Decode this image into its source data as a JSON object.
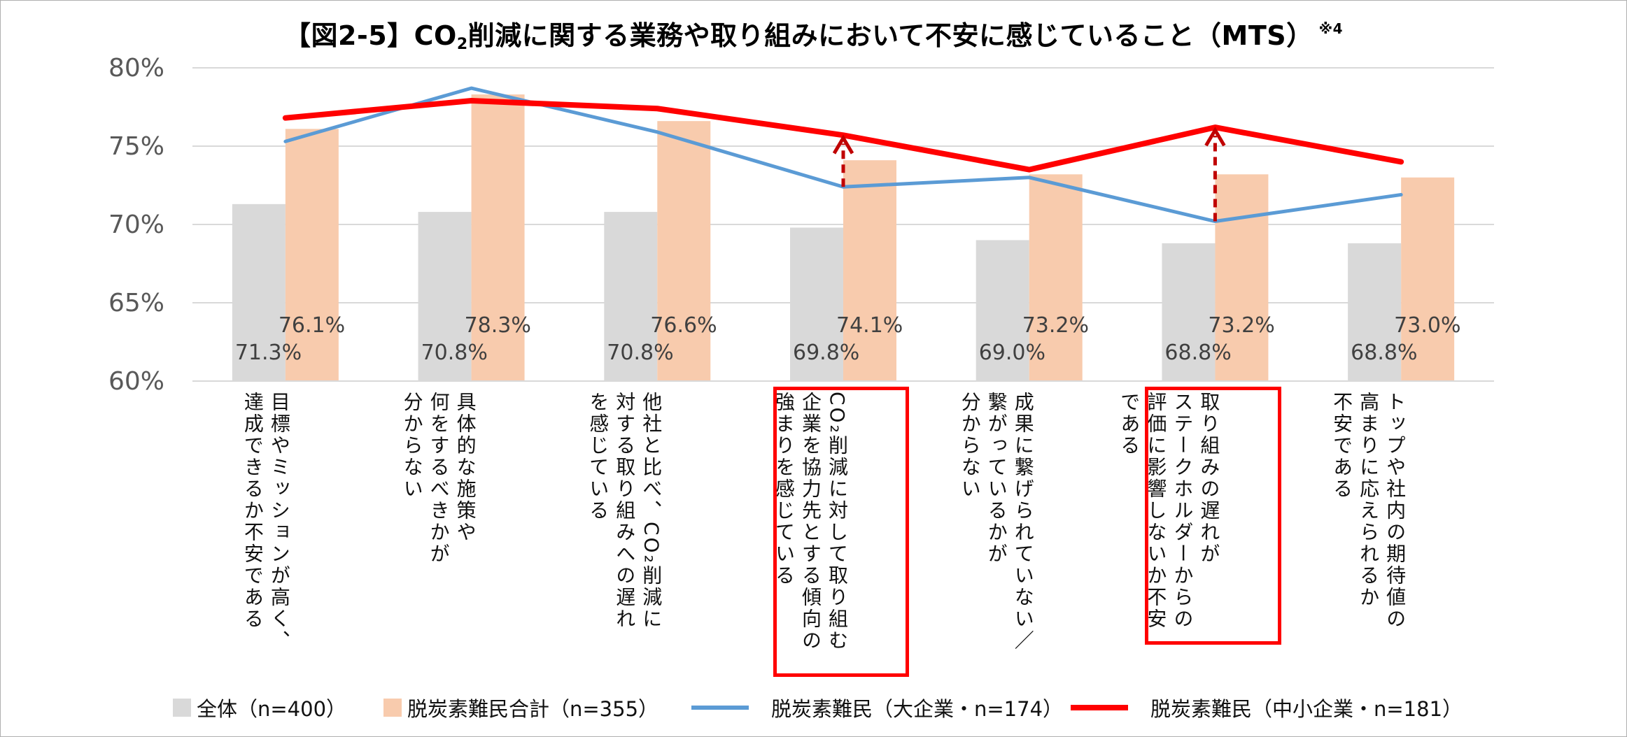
{
  "chart_data": {
    "type": "bar",
    "title_parts": {
      "before_sub": "【図2-5】CO",
      "sub": "2",
      "after_sub": "削減に関する業務や取り組みにおいて不安に感じていること（MTS）",
      "note": "※4"
    },
    "ylim": [
      60,
      80
    ],
    "yticks": [
      "60%",
      "65%",
      "70%",
      "75%",
      "80%"
    ],
    "grid": true,
    "categories": [
      "目標やミッションが高く、\n達成できるか不安である",
      "具体的な施策や\n何をするべきかが\n分からない",
      "他社と比べ、CO₂削減に\n対する取り組みへの遅れ\nを感じている",
      "CO₂削減に対して取り組む\n企業を協力先とする傾向の\n強まりを感じている",
      "成果に繋げられていない／\n繋がっているかが\n分からない",
      "取り組みの遅れが\nステークホルダーからの\n評価に影響しないか不安\nである",
      "トップや社内の期待値の\n高まりに応えられるか\n不安である"
    ],
    "highlighted_categories": [
      3,
      5
    ],
    "series": [
      {
        "name": "全体（n=400）",
        "kind": "bar",
        "color": "#d9d9d9",
        "values": [
          71.3,
          70.8,
          70.8,
          69.8,
          69.0,
          68.8,
          68.8
        ],
        "labels": [
          "71.3%",
          "70.8%",
          "70.8%",
          "69.8%",
          "69.0%",
          "68.8%",
          "68.8%"
        ]
      },
      {
        "name": "脱炭素難民合計（n=355）",
        "kind": "bar",
        "color": "#f8cbad",
        "values": [
          76.1,
          78.3,
          76.6,
          74.1,
          73.2,
          73.2,
          73.0
        ],
        "labels": [
          "76.1%",
          "78.3%",
          "76.6%",
          "74.1%",
          "73.2%",
          "73.2%",
          "73.0%"
        ]
      },
      {
        "name": "脱炭素難民（大企業・n=174）",
        "kind": "line",
        "color": "#5b9bd5",
        "values": [
          75.3,
          78.7,
          75.9,
          72.4,
          73.0,
          70.2,
          71.9
        ]
      },
      {
        "name": "脱炭素難民（中小企業・n=181）",
        "kind": "line",
        "color": "#ff0000",
        "values": [
          76.8,
          77.9,
          77.4,
          75.7,
          73.5,
          76.2,
          74.0
        ]
      }
    ],
    "annotation_arrow_color": "#c00000"
  }
}
